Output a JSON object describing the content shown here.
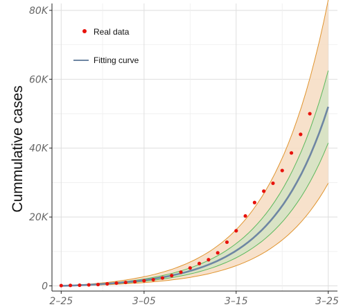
{
  "chart_data": {
    "type": "scatter",
    "ylabel": "Cummulative cases",
    "xlabel": "",
    "x_ticks": [
      "2–25",
      "3–05",
      "3–15",
      "3–25"
    ],
    "y_ticks": [
      "0",
      "20K",
      "40K",
      "60K",
      "80K"
    ],
    "xlim": [
      "2020-02-24",
      "2020-03-26"
    ],
    "ylim": [
      -1500,
      82000
    ],
    "grid": true,
    "legend_position": "top-left",
    "series": [
      {
        "name": "Real data",
        "kind": "points",
        "color": "#e8120c",
        "x": [
          "2020-02-25",
          "2020-02-26",
          "2020-02-27",
          "2020-02-28",
          "2020-02-29",
          "2020-03-01",
          "2020-03-02",
          "2020-03-03",
          "2020-03-04",
          "2020-03-05",
          "2020-03-06",
          "2020-03-07",
          "2020-03-08",
          "2020-03-09",
          "2020-03-10",
          "2020-03-11",
          "2020-03-12",
          "2020-03-13",
          "2020-03-14",
          "2020-03-15",
          "2020-03-16",
          "2020-03-17",
          "2020-03-18",
          "2020-03-19",
          "2020-03-20",
          "2020-03-21",
          "2020-03-22",
          "2020-03-23",
          "2020-03-24",
          "2020-03-25"
        ],
        "y": [
          100,
          150,
          200,
          300,
          400,
          600,
          800,
          1000,
          1200,
          1500,
          1800,
          2300,
          3000,
          4000,
          5200,
          6500,
          7600,
          9600,
          12700,
          16000,
          20300,
          24200,
          27500,
          29800,
          33500,
          38600,
          44000,
          50000,
          null,
          null
        ]
      },
      {
        "name": "Fitting curve",
        "kind": "line",
        "color": "#6e86a3",
        "model": "exponential",
        "x_start": "2020-02-25",
        "x_end": "2020-03-25",
        "y_start": 0,
        "y_end": 52000
      }
    ],
    "bands": [
      {
        "name": "outer",
        "fill": "#f6dcc2",
        "stroke": "#e0942e",
        "lower_end": 29800,
        "upper_end": 83000
      },
      {
        "name": "inner",
        "fill": "#d3e3c4",
        "stroke": "#5cb85c",
        "lower_end": 41500,
        "upper_end": 62500
      }
    ]
  }
}
